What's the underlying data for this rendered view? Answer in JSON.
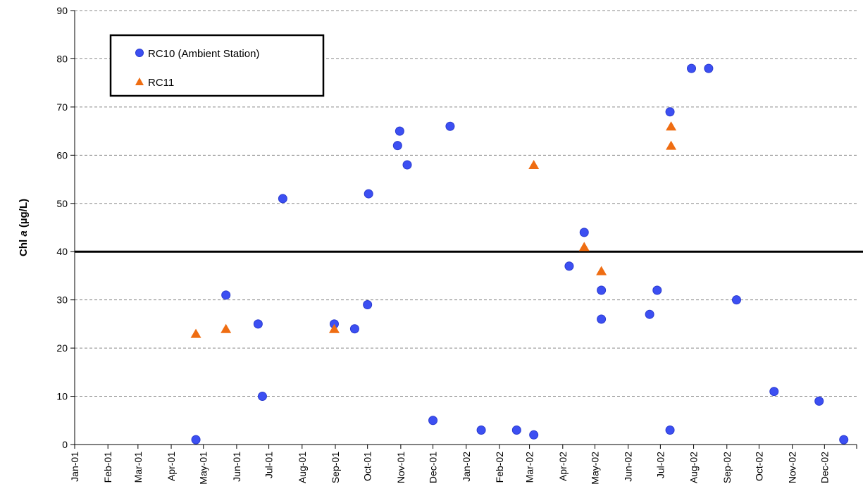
{
  "chart_data": {
    "type": "scatter",
    "ylabel_main": "Chl ",
    "ylabel_italic": "a",
    "ylabel_units": " (µg/L)",
    "ylim": [
      0,
      90
    ],
    "yticks": [
      0,
      10,
      20,
      30,
      40,
      50,
      60,
      70,
      80,
      90
    ],
    "xlim": [
      "2001-01-01",
      "2002-12-31"
    ],
    "xticks": [
      {
        "date": "2001-01-01",
        "label": "Jan-01"
      },
      {
        "date": "2001-02-01",
        "label": "Feb-01"
      },
      {
        "date": "2001-03-01",
        "label": "Mar-01"
      },
      {
        "date": "2001-04-01",
        "label": "Apr-01"
      },
      {
        "date": "2001-05-01",
        "label": "May-01"
      },
      {
        "date": "2001-06-01",
        "label": "Jun-01"
      },
      {
        "date": "2001-07-01",
        "label": "Jul-01"
      },
      {
        "date": "2001-08-01",
        "label": "Aug-01"
      },
      {
        "date": "2001-09-01",
        "label": "Sep-01"
      },
      {
        "date": "2001-10-01",
        "label": "Oct-01"
      },
      {
        "date": "2001-11-01",
        "label": "Nov-01"
      },
      {
        "date": "2001-12-01",
        "label": "Dec-01"
      },
      {
        "date": "2002-01-01",
        "label": "Jan-02"
      },
      {
        "date": "2002-02-01",
        "label": "Feb-02"
      },
      {
        "date": "2002-03-01",
        "label": "Mar-02"
      },
      {
        "date": "2002-04-01",
        "label": "Apr-02"
      },
      {
        "date": "2002-05-01",
        "label": "May-02"
      },
      {
        "date": "2002-06-01",
        "label": "Jun-02"
      },
      {
        "date": "2002-07-01",
        "label": "Jul-02"
      },
      {
        "date": "2002-08-01",
        "label": "Aug-02"
      },
      {
        "date": "2002-09-01",
        "label": "Sep-02"
      },
      {
        "date": "2002-10-01",
        "label": "Oct-02"
      },
      {
        "date": "2002-11-01",
        "label": "Nov-02"
      },
      {
        "date": "2002-12-01",
        "label": "Dec-02"
      }
    ],
    "grid": true,
    "reference_line": 40,
    "legend_position": "top-left",
    "series": [
      {
        "name": "RC10 (Ambient Station)",
        "marker": "circle",
        "color": "#3c4ff2",
        "points": [
          {
            "x": "2001-04-24",
            "y": 1
          },
          {
            "x": "2001-05-22",
            "y": 31
          },
          {
            "x": "2001-06-21",
            "y": 25
          },
          {
            "x": "2001-06-25",
            "y": 10
          },
          {
            "x": "2001-07-14",
            "y": 51
          },
          {
            "x": "2001-08-31",
            "y": 25
          },
          {
            "x": "2001-09-19",
            "y": 24
          },
          {
            "x": "2001-10-02",
            "y": 52
          },
          {
            "x": "2001-10-01",
            "y": 29
          },
          {
            "x": "2001-10-29",
            "y": 62
          },
          {
            "x": "2001-10-31",
            "y": 65
          },
          {
            "x": "2001-11-07",
            "y": 58
          },
          {
            "x": "2001-12-01",
            "y": 5
          },
          {
            "x": "2001-12-17",
            "y": 66
          },
          {
            "x": "2002-01-15",
            "y": 3
          },
          {
            "x": "2002-02-17",
            "y": 3
          },
          {
            "x": "2002-03-05",
            "y": 2
          },
          {
            "x": "2002-04-07",
            "y": 37
          },
          {
            "x": "2002-04-21",
            "y": 44
          },
          {
            "x": "2002-05-07",
            "y": 32
          },
          {
            "x": "2002-05-07",
            "y": 26
          },
          {
            "x": "2002-06-21",
            "y": 27
          },
          {
            "x": "2002-06-28",
            "y": 32
          },
          {
            "x": "2002-07-10",
            "y": 69
          },
          {
            "x": "2002-07-10",
            "y": 3
          },
          {
            "x": "2002-07-30",
            "y": 78
          },
          {
            "x": "2002-08-15",
            "y": 78
          },
          {
            "x": "2002-09-10",
            "y": 30
          },
          {
            "x": "2002-10-15",
            "y": 11
          },
          {
            "x": "2002-11-26",
            "y": 9
          },
          {
            "x": "2002-12-19",
            "y": 1
          }
        ]
      },
      {
        "name": "RC11",
        "marker": "triangle",
        "color": "#ef6d12",
        "points": [
          {
            "x": "2001-04-24",
            "y": 23
          },
          {
            "x": "2001-05-22",
            "y": 24
          },
          {
            "x": "2001-08-31",
            "y": 24
          },
          {
            "x": "2002-03-05",
            "y": 58
          },
          {
            "x": "2002-04-21",
            "y": 41
          },
          {
            "x": "2002-05-07",
            "y": 36
          },
          {
            "x": "2002-07-11",
            "y": 66
          },
          {
            "x": "2002-07-11",
            "y": 62
          }
        ]
      }
    ]
  }
}
